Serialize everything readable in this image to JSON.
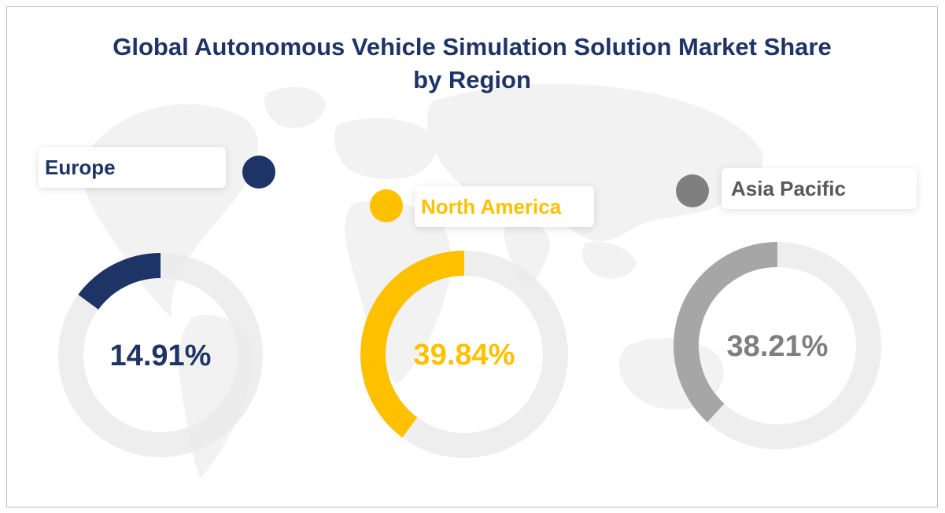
{
  "title_line1": "Global Autonomous Vehicle Simulation Solution Market Share",
  "title_line2": "by Region",
  "chart_data": {
    "type": "donut",
    "title": "Global Autonomous Vehicle Simulation Solution Market Share by Region",
    "unit": "%",
    "series": [
      {
        "name": "Europe",
        "value": 14.91,
        "label": "14.91%",
        "color": "#1f3466",
        "track_color": "#ebebeb"
      },
      {
        "name": "North America",
        "value": 39.84,
        "label": "39.84%",
        "color": "#ffc000",
        "track_color": "#ebebeb"
      },
      {
        "name": "Asia Pacific",
        "value": 38.21,
        "label": "38.21%",
        "color": "#a6a6a6",
        "track_color": "#ebebeb"
      }
    ]
  },
  "legend_dot_colors": {
    "europe": "#1f3466",
    "north_america": "#ffc000",
    "asia_pacific": "#7f7f7f"
  },
  "label_text_colors": {
    "europe": "#1f3466",
    "north_america": "#ffc000",
    "asia_pacific": "#595959"
  },
  "value_text_colors": {
    "europe": "#1f3466",
    "north_america": "#ffc000",
    "asia_pacific": "#7f7f7f"
  }
}
